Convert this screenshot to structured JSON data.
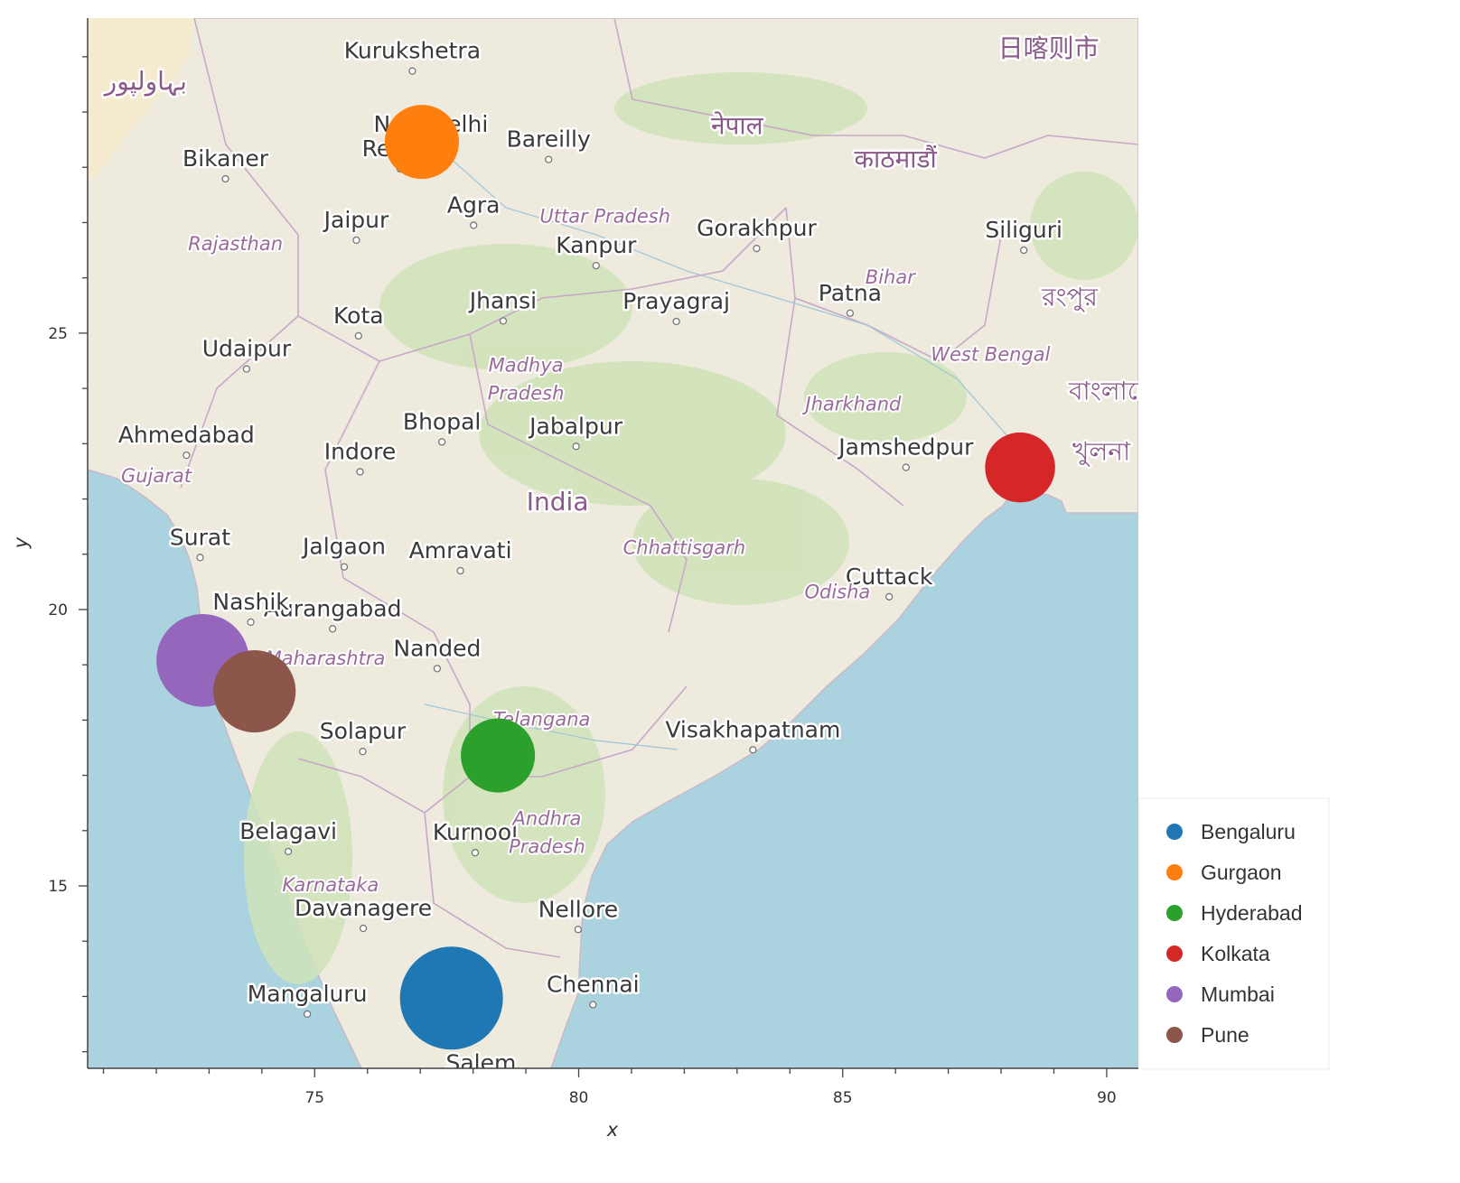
{
  "chart_data": {
    "type": "scatter",
    "title": "",
    "xlabel": "x",
    "ylabel": "y",
    "xlim": [
      70.7,
      90.6
    ],
    "ylim": [
      11.7,
      30.7
    ],
    "x_ticks": [
      75,
      80,
      85,
      90
    ],
    "y_ticks": [
      15,
      20,
      25
    ],
    "grid": false,
    "legend_position": "bottom-right-outside",
    "background": "OpenStreetMap tiles of India",
    "series": [
      {
        "name": "Bengaluru",
        "x": 77.59,
        "y": 12.97,
        "size": 1.0,
        "color": "#1f77b4"
      },
      {
        "name": "Gurgaon",
        "x": 77.03,
        "y": 28.46,
        "size": 0.72,
        "color": "#ff7f0e"
      },
      {
        "name": "Hyderabad",
        "x": 78.47,
        "y": 17.36,
        "size": 0.72,
        "color": "#2ca02c"
      },
      {
        "name": "Kolkata",
        "x": 88.36,
        "y": 22.57,
        "size": 0.68,
        "color": "#d62728"
      },
      {
        "name": "Mumbai",
        "x": 72.88,
        "y": 19.08,
        "size": 0.9,
        "color": "#9467bd"
      },
      {
        "name": "Pune",
        "x": 73.86,
        "y": 18.52,
        "size": 0.8,
        "color": "#8c564b"
      }
    ]
  },
  "map_labels": {
    "cities": [
      {
        "text": "Kurukshetra",
        "lon": 76.85,
        "lat": 29.97
      },
      {
        "text": "New Delhi",
        "lon": 77.2,
        "lat": 28.64
      },
      {
        "text": "Bikaner",
        "lon": 73.31,
        "lat": 28.02
      },
      {
        "text": "Rewari",
        "lon": 76.62,
        "lat": 28.2
      },
      {
        "text": "Bareilly",
        "lon": 79.43,
        "lat": 28.37
      },
      {
        "text": "Agra",
        "lon": 78.01,
        "lat": 27.18
      },
      {
        "text": "Jaipur",
        "lon": 75.79,
        "lat": 26.91
      },
      {
        "text": "Kanpur",
        "lon": 80.33,
        "lat": 26.45
      },
      {
        "text": "Gorakhpur",
        "lon": 83.37,
        "lat": 26.76
      },
      {
        "text": "Siliguri",
        "lon": 88.43,
        "lat": 26.73
      },
      {
        "text": "Prayagraj",
        "lon": 81.85,
        "lat": 25.44
      },
      {
        "text": "Kota",
        "lon": 75.83,
        "lat": 25.18
      },
      {
        "text": "Jhansi",
        "lon": 78.57,
        "lat": 25.45
      },
      {
        "text": "Patna",
        "lon": 85.14,
        "lat": 25.59
      },
      {
        "text": "Udaipur",
        "lon": 73.71,
        "lat": 24.58
      },
      {
        "text": "Ahmedabad",
        "lon": 72.57,
        "lat": 23.02
      },
      {
        "text": "Bhopal",
        "lon": 77.41,
        "lat": 23.26
      },
      {
        "text": "Jabalpur",
        "lon": 79.95,
        "lat": 23.18
      },
      {
        "text": "Jamshedpur",
        "lon": 86.2,
        "lat": 22.8
      },
      {
        "text": "Indore",
        "lon": 75.86,
        "lat": 22.72
      },
      {
        "text": "Jalgaon",
        "lon": 75.56,
        "lat": 21.0
      },
      {
        "text": "Surat",
        "lon": 72.83,
        "lat": 21.17
      },
      {
        "text": "Amravati",
        "lon": 77.76,
        "lat": 20.93
      },
      {
        "text": "Cuttack",
        "lon": 85.88,
        "lat": 20.46
      },
      {
        "text": "Aurangabad",
        "lon": 75.34,
        "lat": 19.88
      },
      {
        "text": "Nashik",
        "lon": 73.79,
        "lat": 20.0
      },
      {
        "text": "Nanded",
        "lon": 77.32,
        "lat": 19.16
      },
      {
        "text": "Visakhapatnam",
        "lon": 83.3,
        "lat": 17.69
      },
      {
        "text": "Solapur",
        "lon": 75.91,
        "lat": 17.66
      },
      {
        "text": "Belagavi",
        "lon": 74.5,
        "lat": 15.85
      },
      {
        "text": "Kurnool",
        "lon": 78.04,
        "lat": 15.83
      },
      {
        "text": "Davanagere",
        "lon": 75.92,
        "lat": 14.46
      },
      {
        "text": "Nellore",
        "lon": 79.99,
        "lat": 14.44
      },
      {
        "text": "Mangaluru",
        "lon": 74.86,
        "lat": 12.91
      },
      {
        "text": "Chennai",
        "lon": 80.27,
        "lat": 13.08
      },
      {
        "text": "Salem",
        "lon": 78.15,
        "lat": 11.66
      }
    ],
    "regions": [
      {
        "text": "Uttar Pradesh",
        "lon": 80.5,
        "lat": 27.0
      },
      {
        "text": "Rajasthan",
        "lon": 73.5,
        "lat": 26.5
      },
      {
        "text": "Bihar",
        "lon": 85.9,
        "lat": 25.9
      },
      {
        "text": "West Bengal",
        "lon": 87.8,
        "lat": 24.5
      },
      {
        "text": "Madhya",
        "lon": 79.0,
        "lat": 24.3
      },
      {
        "text": "Pradesh",
        "lon": 79.0,
        "lat": 23.8
      },
      {
        "text": "Jharkhand",
        "lon": 85.2,
        "lat": 23.6
      },
      {
        "text": "Gujarat",
        "lon": 72.0,
        "lat": 22.3
      },
      {
        "text": "Chhattisgarh",
        "lon": 82.0,
        "lat": 21.0
      },
      {
        "text": "Odisha",
        "lon": 84.9,
        "lat": 20.2
      },
      {
        "text": "Maharashtra",
        "lon": 75.2,
        "lat": 19.0
      },
      {
        "text": "Telangana",
        "lon": 79.3,
        "lat": 17.9
      },
      {
        "text": "Andhra",
        "lon": 79.4,
        "lat": 16.1
      },
      {
        "text": "Pradesh",
        "lon": 79.4,
        "lat": 15.6
      },
      {
        "text": "Karnataka",
        "lon": 75.3,
        "lat": 14.9
      }
    ],
    "countries": [
      {
        "text": "India",
        "lon": 79.6,
        "lat": 21.8
      },
      {
        "text": "नेपाल",
        "lon": 83.0,
        "lat": 28.6
      },
      {
        "text": "काठमाडौं",
        "lon": 86.0,
        "lat": 28.0
      },
      {
        "text": "بہاولپور",
        "lon": 71.8,
        "lat": 29.4
      },
      {
        "text": "日喀则市",
        "lon": 88.9,
        "lat": 30.0
      },
      {
        "text": "বাংলাদেশ",
        "lon": 90.2,
        "lat": 23.8
      },
      {
        "text": "রংপুর",
        "lon": 89.3,
        "lat": 25.5
      },
      {
        "text": "খুলনা",
        "lon": 89.9,
        "lat": 22.7
      }
    ]
  }
}
